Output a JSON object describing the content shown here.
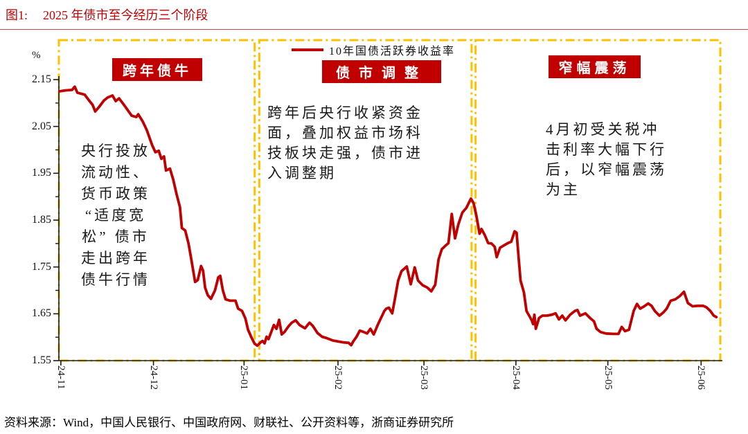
{
  "title": {
    "prefix": "图1:",
    "text": "2025 年债市至今经历三个阶段"
  },
  "source": "资料来源：Wind，中国人民银行、中国政府网、财联社、公开资料等，浙商证券研究所",
  "legend": {
    "label": "10年国债活跃券收益率"
  },
  "colors": {
    "accent_red": "#c00000",
    "box_yellow": "#ffc000",
    "axis_black": "#1a1a1a"
  },
  "phases": [
    {
      "label": "跨年债牛",
      "annotation": "央行投放\n流动性、\n货币政策\n“适度宽\n松” 债市\n走出跨年\n债牛行情"
    },
    {
      "label": "债市调整",
      "annotation": "跨年后央行收紧资金\n面，叠加权益市场科\n技板块走强，债市进\n入调整期"
    },
    {
      "label": "窄幅震荡",
      "annotation": "4月初受关税冲\n击利率大幅下行\n后，以窄幅震荡\n为主"
    }
  ],
  "y_axis": {
    "unit": "%",
    "ticks": [
      "2.15",
      "2.05",
      "1.95",
      "1.85",
      "1.75",
      "1.65",
      "1.55"
    ]
  },
  "x_axis": {
    "ticks": [
      "24-11",
      "24-12",
      "25-01",
      "25-02",
      "25-03",
      "25-04",
      "25-05",
      "25-06"
    ]
  },
  "chart_data": {
    "type": "line",
    "series_name": "10年国债活跃券收益率",
    "unit": "%",
    "ylim": [
      1.55,
      2.15
    ],
    "y_major_ticks": [
      2.15,
      2.05,
      1.95,
      1.85,
      1.75,
      1.65,
      1.55
    ],
    "y_minor_step": 0.05,
    "x_tick_labels": [
      "24-11",
      "24-12",
      "25-01",
      "25-02",
      "25-03",
      "25-04",
      "25-05",
      "25-06"
    ],
    "x_tick_pos": [
      0.003,
      0.143,
      0.28,
      0.422,
      0.552,
      0.691,
      0.83,
      0.971
    ],
    "grid": false,
    "legend_position": "top-center",
    "phase_regions": [
      [
        0.0,
        0.296
      ],
      [
        0.303,
        0.624
      ],
      [
        0.63,
        1.0
      ]
    ],
    "points": [
      [
        0.001,
        2.125
      ],
      [
        0.01,
        2.127
      ],
      [
        0.02,
        2.128
      ],
      [
        0.024,
        2.135
      ],
      [
        0.028,
        2.122
      ],
      [
        0.039,
        2.118
      ],
      [
        0.047,
        2.103
      ],
      [
        0.051,
        2.096
      ],
      [
        0.055,
        2.082
      ],
      [
        0.061,
        2.092
      ],
      [
        0.068,
        2.105
      ],
      [
        0.074,
        2.112
      ],
      [
        0.081,
        2.116
      ],
      [
        0.086,
        2.104
      ],
      [
        0.091,
        2.11
      ],
      [
        0.099,
        2.095
      ],
      [
        0.11,
        2.073
      ],
      [
        0.117,
        2.07
      ],
      [
        0.12,
        2.076
      ],
      [
        0.127,
        2.06
      ],
      [
        0.133,
        2.042
      ],
      [
        0.141,
        2.01
      ],
      [
        0.146,
        1.995
      ],
      [
        0.151,
        1.998
      ],
      [
        0.155,
        1.981
      ],
      [
        0.159,
        1.986
      ],
      [
        0.162,
        1.956
      ],
      [
        0.168,
        1.96
      ],
      [
        0.173,
        1.936
      ],
      [
        0.178,
        1.905
      ],
      [
        0.183,
        1.878
      ],
      [
        0.186,
        1.833
      ],
      [
        0.191,
        1.828
      ],
      [
        0.196,
        1.8
      ],
      [
        0.2,
        1.768
      ],
      [
        0.206,
        1.718
      ],
      [
        0.21,
        1.722
      ],
      [
        0.215,
        1.752
      ],
      [
        0.218,
        1.742
      ],
      [
        0.221,
        1.706
      ],
      [
        0.225,
        1.69
      ],
      [
        0.23,
        1.682
      ],
      [
        0.236,
        1.7
      ],
      [
        0.241,
        1.728
      ],
      [
        0.244,
        1.731
      ],
      [
        0.248,
        1.7
      ],
      [
        0.252,
        1.681
      ],
      [
        0.259,
        1.678
      ],
      [
        0.267,
        1.678
      ],
      [
        0.271,
        1.661
      ],
      [
        0.277,
        1.656
      ],
      [
        0.282,
        1.64
      ],
      [
        0.286,
        1.616
      ],
      [
        0.291,
        1.6
      ],
      [
        0.296,
        1.586
      ],
      [
        0.3,
        1.582
      ],
      [
        0.305,
        1.589
      ],
      [
        0.308,
        1.592
      ],
      [
        0.311,
        1.587
      ],
      [
        0.314,
        1.601
      ],
      [
        0.317,
        1.596
      ],
      [
        0.321,
        1.611
      ],
      [
        0.325,
        1.626
      ],
      [
        0.329,
        1.618
      ],
      [
        0.333,
        1.637
      ],
      [
        0.337,
        1.606
      ],
      [
        0.341,
        1.611
      ],
      [
        0.347,
        1.623
      ],
      [
        0.352,
        1.631
      ],
      [
        0.358,
        1.636
      ],
      [
        0.364,
        1.626
      ],
      [
        0.372,
        1.619
      ],
      [
        0.379,
        1.631
      ],
      [
        0.384,
        1.624
      ],
      [
        0.391,
        1.609
      ],
      [
        0.398,
        1.601
      ],
      [
        0.405,
        1.598
      ],
      [
        0.414,
        1.593
      ],
      [
        0.422,
        1.591
      ],
      [
        0.43,
        1.589
      ],
      [
        0.438,
        1.588
      ],
      [
        0.442,
        1.583
      ],
      [
        0.445,
        1.591
      ],
      [
        0.45,
        1.601
      ],
      [
        0.455,
        1.614
      ],
      [
        0.461,
        1.611
      ],
      [
        0.466,
        1.608
      ],
      [
        0.471,
        1.618
      ],
      [
        0.476,
        1.606
      ],
      [
        0.482,
        1.626
      ],
      [
        0.487,
        1.641
      ],
      [
        0.492,
        1.656
      ],
      [
        0.495,
        1.661
      ],
      [
        0.499,
        1.663
      ],
      [
        0.504,
        1.651
      ],
      [
        0.508,
        1.681
      ],
      [
        0.513,
        1.721
      ],
      [
        0.518,
        1.741
      ],
      [
        0.526,
        1.751
      ],
      [
        0.532,
        1.713
      ],
      [
        0.538,
        1.749
      ],
      [
        0.543,
        1.721
      ],
      [
        0.55,
        1.711
      ],
      [
        0.557,
        1.706
      ],
      [
        0.563,
        1.698
      ],
      [
        0.569,
        1.712
      ],
      [
        0.574,
        1.766
      ],
      [
        0.579,
        1.788
      ],
      [
        0.585,
        1.796
      ],
      [
        0.589,
        1.801
      ],
      [
        0.594,
        1.863
      ],
      [
        0.599,
        1.811
      ],
      [
        0.604,
        1.841
      ],
      [
        0.61,
        1.866
      ],
      [
        0.616,
        1.876
      ],
      [
        0.623,
        1.896
      ],
      [
        0.627,
        1.886
      ],
      [
        0.631,
        1.861
      ],
      [
        0.636,
        1.821
      ],
      [
        0.639,
        1.831
      ],
      [
        0.644,
        1.818
      ],
      [
        0.649,
        1.801
      ],
      [
        0.654,
        1.8
      ],
      [
        0.659,
        1.793
      ],
      [
        0.662,
        1.771
      ],
      [
        0.667,
        1.791
      ],
      [
        0.673,
        1.796
      ],
      [
        0.679,
        1.801
      ],
      [
        0.684,
        1.804
      ],
      [
        0.689,
        1.826
      ],
      [
        0.692,
        1.823
      ],
      [
        0.695,
        1.772
      ],
      [
        0.698,
        1.721
      ],
      [
        0.703,
        1.696
      ],
      [
        0.707,
        1.656
      ],
      [
        0.711,
        1.646
      ],
      [
        0.715,
        1.636
      ],
      [
        0.717,
        1.628
      ],
      [
        0.719,
        1.648
      ],
      [
        0.721,
        1.618
      ],
      [
        0.726,
        1.641
      ],
      [
        0.731,
        1.646
      ],
      [
        0.738,
        1.646
      ],
      [
        0.745,
        1.648
      ],
      [
        0.751,
        1.651
      ],
      [
        0.756,
        1.638
      ],
      [
        0.761,
        1.646
      ],
      [
        0.766,
        1.636
      ],
      [
        0.773,
        1.648
      ],
      [
        0.78,
        1.656
      ],
      [
        0.784,
        1.658
      ],
      [
        0.788,
        1.646
      ],
      [
        0.796,
        1.651
      ],
      [
        0.803,
        1.641
      ],
      [
        0.809,
        1.634
      ],
      [
        0.813,
        1.618
      ],
      [
        0.819,
        1.611
      ],
      [
        0.827,
        1.608
      ],
      [
        0.838,
        1.607
      ],
      [
        0.846,
        1.607
      ],
      [
        0.851,
        1.622
      ],
      [
        0.856,
        1.613
      ],
      [
        0.862,
        1.616
      ],
      [
        0.869,
        1.656
      ],
      [
        0.874,
        1.671
      ],
      [
        0.879,
        1.661
      ],
      [
        0.885,
        1.666
      ],
      [
        0.891,
        1.672
      ],
      [
        0.896,
        1.667
      ],
      [
        0.901,
        1.656
      ],
      [
        0.908,
        1.646
      ],
      [
        0.914,
        1.653
      ],
      [
        0.919,
        1.661
      ],
      [
        0.925,
        1.678
      ],
      [
        0.932,
        1.681
      ],
      [
        0.939,
        1.688
      ],
      [
        0.945,
        1.697
      ],
      [
        0.951,
        1.673
      ],
      [
        0.958,
        1.666
      ],
      [
        0.966,
        1.667
      ],
      [
        0.974,
        1.667
      ],
      [
        0.979,
        1.664
      ],
      [
        0.985,
        1.656
      ],
      [
        0.99,
        1.646
      ],
      [
        0.994,
        1.643
      ]
    ]
  }
}
